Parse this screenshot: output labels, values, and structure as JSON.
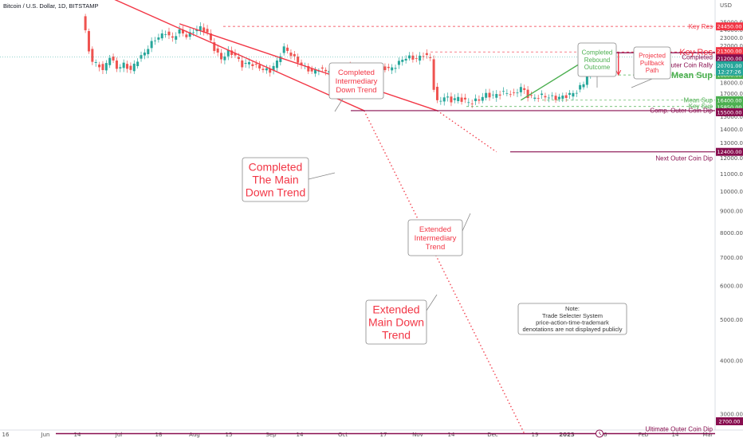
{
  "header": {
    "title": "Bitcoin / U.S. Dollar, 1D, BITSTAMP"
  },
  "chart_data": {
    "type": "line",
    "title": "Bitcoin / U.S. Dollar, 1D, BITSTAMP",
    "yaxis_unit": "USD",
    "yscale": "log",
    "ylim": [
      2700,
      26000
    ],
    "y_ticks": [
      "25000.00",
      "24000.00",
      "23000.00",
      "22000.00",
      "21000.00",
      "20000.00",
      "19000.00",
      "18000.00",
      "17000.00",
      "16000.00",
      "15000.00",
      "14000.00",
      "13000.00",
      "12000.00",
      "11000.00",
      "10000.00",
      "9000.00",
      "8000.00",
      "7000.00",
      "6000.00",
      "5000.00",
      "4000.00",
      "3000.00"
    ],
    "x_ticks": [
      "16",
      "Jun",
      "14",
      "Jul",
      "18",
      "Aug",
      "15",
      "Sep",
      "14",
      "Oct",
      "17",
      "Nov",
      "14",
      "Dec",
      "19",
      "2023",
      "16",
      "Feb",
      "14",
      "Mar"
    ],
    "levels": [
      {
        "name": "Key Res",
        "value": 24450.0,
        "label": "24450.00",
        "color": "#f23645"
      },
      {
        "name": "Key Res",
        "value": 21300.0,
        "label": "21300.00",
        "color": "#f23645"
      },
      {
        "name": "Completed Outer Coin Rally",
        "value": 21200.0,
        "label": "21200.00",
        "color": "#880e4f"
      },
      {
        "name": "Mean Sup",
        "value": 18800.0,
        "label": "18800.00",
        "color": "#4caf50"
      },
      {
        "name": "Mean Sup",
        "value": 16400.0,
        "label": "16400.00",
        "color": "#4caf50"
      },
      {
        "name": "Key Sup",
        "value": 15850.0,
        "label": "15850.00",
        "color": "#4caf50"
      },
      {
        "name": "Comp. Outer Coin Dip",
        "value": 15500.0,
        "label": "15500.00",
        "color": "#880e4f"
      },
      {
        "name": "Next Outer Coin Dip",
        "value": 12400.0,
        "label": "12400.00",
        "color": "#880e4f"
      },
      {
        "name": "Ultimate Outer Coin Dip",
        "value": 2700.0,
        "label": "2700.00",
        "color": "#880e4f"
      }
    ],
    "current_price": {
      "value": "20701.00",
      "countdown": "12:27:26"
    },
    "price_series": [
      {
        "x": 3,
        "y": 26000
      },
      {
        "x": 5,
        "y": 21500
      },
      {
        "x": 6,
        "y": 20200
      },
      {
        "x": 8,
        "y": 19800
      },
      {
        "x": 9,
        "y": 19200
      },
      {
        "x": 11,
        "y": 20800
      },
      {
        "x": 13,
        "y": 19500
      },
      {
        "x": 15,
        "y": 19900
      },
      {
        "x": 17,
        "y": 19300
      },
      {
        "x": 19,
        "y": 20400
      },
      {
        "x": 21,
        "y": 21200
      },
      {
        "x": 23,
        "y": 22400
      },
      {
        "x": 25,
        "y": 23100
      },
      {
        "x": 27,
        "y": 23600
      },
      {
        "x": 29,
        "y": 22900
      },
      {
        "x": 31,
        "y": 23900
      },
      {
        "x": 33,
        "y": 23200
      },
      {
        "x": 35,
        "y": 23800
      },
      {
        "x": 37,
        "y": 24300
      },
      {
        "x": 39,
        "y": 23600
      },
      {
        "x": 41,
        "y": 21600
      },
      {
        "x": 43,
        "y": 20500
      },
      {
        "x": 45,
        "y": 21300
      },
      {
        "x": 47,
        "y": 20900
      },
      {
        "x": 49,
        "y": 19800
      },
      {
        "x": 51,
        "y": 20100
      },
      {
        "x": 53,
        "y": 19700
      },
      {
        "x": 55,
        "y": 19400
      },
      {
        "x": 57,
        "y": 19200
      },
      {
        "x": 59,
        "y": 20200
      },
      {
        "x": 61,
        "y": 21800
      },
      {
        "x": 63,
        "y": 21000
      },
      {
        "x": 65,
        "y": 20200
      },
      {
        "x": 67,
        "y": 19600
      },
      {
        "x": 69,
        "y": 19100
      },
      {
        "x": 71,
        "y": 19400
      },
      {
        "x": 73,
        "y": 19200
      },
      {
        "x": 75,
        "y": 19500
      },
      {
        "x": 77,
        "y": 19300
      },
      {
        "x": 79,
        "y": 19800
      },
      {
        "x": 81,
        "y": 19500
      },
      {
        "x": 83,
        "y": 19400
      },
      {
        "x": 85,
        "y": 19700
      },
      {
        "x": 87,
        "y": 19300
      },
      {
        "x": 89,
        "y": 19600
      },
      {
        "x": 91,
        "y": 19400
      },
      {
        "x": 93,
        "y": 19700
      },
      {
        "x": 95,
        "y": 20500
      },
      {
        "x": 97,
        "y": 20700
      },
      {
        "x": 99,
        "y": 20500
      },
      {
        "x": 101,
        "y": 21000
      },
      {
        "x": 103,
        "y": 20600
      },
      {
        "x": 104,
        "y": 17500
      },
      {
        "x": 105,
        "y": 16200
      },
      {
        "x": 107,
        "y": 16700
      },
      {
        "x": 109,
        "y": 16400
      },
      {
        "x": 111,
        "y": 16600
      },
      {
        "x": 113,
        "y": 16300
      },
      {
        "x": 115,
        "y": 16200
      },
      {
        "x": 117,
        "y": 16500
      },
      {
        "x": 119,
        "y": 16900
      },
      {
        "x": 121,
        "y": 16800
      },
      {
        "x": 123,
        "y": 17000
      },
      {
        "x": 125,
        "y": 17100
      },
      {
        "x": 127,
        "y": 16900
      },
      {
        "x": 129,
        "y": 17600
      },
      {
        "x": 131,
        "y": 16800
      },
      {
        "x": 133,
        "y": 16600
      },
      {
        "x": 135,
        "y": 16800
      },
      {
        "x": 137,
        "y": 16700
      },
      {
        "x": 139,
        "y": 16600
      },
      {
        "x": 141,
        "y": 16700
      },
      {
        "x": 143,
        "y": 16900
      },
      {
        "x": 145,
        "y": 17200
      },
      {
        "x": 147,
        "y": 18000
      },
      {
        "x": 149,
        "y": 19500
      },
      {
        "x": 150,
        "y": 20700
      }
    ],
    "trend_lines": [
      {
        "name": "Main Down Trend",
        "style": "solid",
        "color": "#f23645",
        "points": [
          {
            "x": -14,
            "y": 35000
          },
          {
            "x": 83,
            "y": 15500
          }
        ]
      },
      {
        "name": "Extended Main Down Trend",
        "style": "dotted",
        "color": "#f23645",
        "points": [
          {
            "x": 83,
            "y": 15500
          },
          {
            "x": 129,
            "y": 2700
          }
        ]
      },
      {
        "name": "Intermediary Down Trend",
        "style": "solid",
        "color": "#f23645",
        "points": [
          {
            "x": 30,
            "y": 24800
          },
          {
            "x": 104,
            "y": 15500
          }
        ]
      },
      {
        "name": "Extended Intermediary Trend",
        "style": "dotted",
        "color": "#f23645",
        "points": [
          {
            "x": 104,
            "y": 15500
          },
          {
            "x": 121,
            "y": 12400
          }
        ]
      },
      {
        "name": "Rebound",
        "style": "solid",
        "color": "#4caf50",
        "points": [
          {
            "x": 128,
            "y": 16400
          },
          {
            "x": 150,
            "y": 21200
          }
        ]
      },
      {
        "name": "Projected Pullback",
        "style": "solid",
        "color": "#f23645",
        "points": [
          {
            "x": 156,
            "y": 21200
          },
          {
            "x": 156,
            "y": 18800
          }
        ]
      }
    ],
    "annotations": [
      {
        "key": "completed_main",
        "text": "Completed The Main Down Trend",
        "lines": [
          "Completed",
          "The Main",
          "Down Trend"
        ],
        "color": "#f23645"
      },
      {
        "key": "completed_intermediary",
        "text": "Completed Intermediary Down Trend",
        "lines": [
          "Completed",
          "Intermediary",
          "Down Trend"
        ],
        "color": "#f23645"
      },
      {
        "key": "extended_intermediary",
        "text": "Extended Intermediary Trend",
        "lines": [
          "Extended",
          "Intermediary",
          "Trend"
        ],
        "color": "#f23645"
      },
      {
        "key": "extended_main",
        "text": "Extended Main Down Trend",
        "lines": [
          "Extended",
          "Main Down",
          "Trend"
        ],
        "color": "#f23645"
      },
      {
        "key": "rebound",
        "text": "Completed Rebound Outcome",
        "lines": [
          "Completed",
          "Rebound",
          "Outcome"
        ],
        "color": "#4caf50"
      },
      {
        "key": "pullback",
        "text": "Projected Pullback Path",
        "lines": [
          "Projected",
          "Pullback",
          "Path"
        ],
        "color": "#f23645"
      },
      {
        "key": "note",
        "text": "Note: Trade Selecter System price-action-time-trademark denotations are not displayed publicly",
        "lines": [
          "Note:",
          "Trade Selecter System",
          "price-action-time-trademark",
          "denotations are not displayed publicly"
        ],
        "color": "#333333"
      }
    ]
  }
}
